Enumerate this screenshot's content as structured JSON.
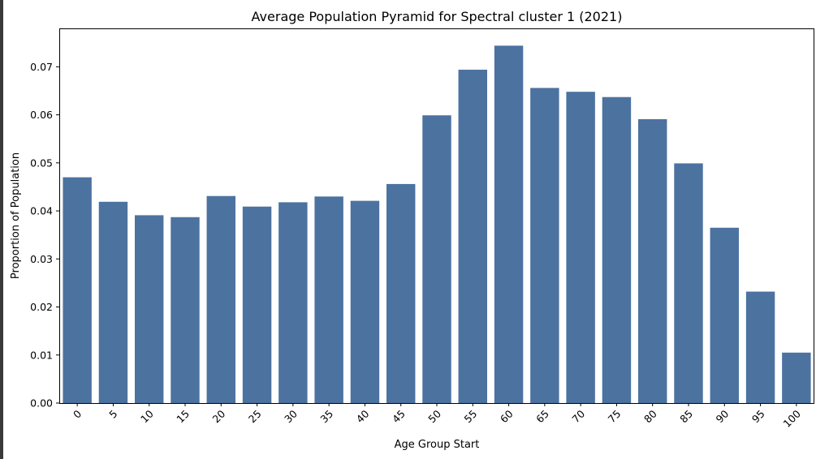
{
  "chart_data": {
    "type": "bar",
    "title": "Average Population Pyramid for Spectral cluster 1 (2021)",
    "xlabel": "Age Group Start",
    "ylabel": "Proportion of Population",
    "categories": [
      "0",
      "5",
      "10",
      "15",
      "20",
      "25",
      "30",
      "35",
      "40",
      "45",
      "50",
      "55",
      "60",
      "65",
      "70",
      "75",
      "80",
      "85",
      "90",
      "95",
      "100"
    ],
    "values": [
      0.047,
      0.0419,
      0.0391,
      0.0387,
      0.0431,
      0.0409,
      0.0418,
      0.043,
      0.0421,
      0.0456,
      0.0599,
      0.0694,
      0.0744,
      0.0656,
      0.0648,
      0.0637,
      0.0591,
      0.0499,
      0.0365,
      0.0232,
      0.0105
    ],
    "ylim": [
      0,
      0.078
    ],
    "yticks": [
      "0.00",
      "0.01",
      "0.02",
      "0.03",
      "0.04",
      "0.05",
      "0.06",
      "0.07"
    ],
    "bar_color": "#4c72a0",
    "grid": false,
    "x_tick_rotation_deg": 45
  }
}
